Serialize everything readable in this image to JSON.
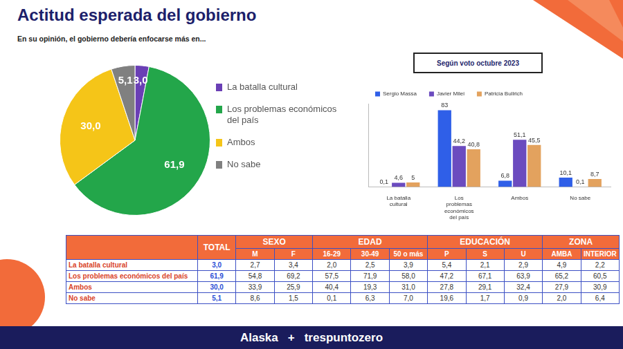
{
  "title": "Actitud esperada del gobierno",
  "subtitle": "En su opinión, el gobierno debería enfocarse más en...",
  "chart_data": [
    {
      "type": "pie",
      "categories": [
        "La batalla cultural",
        "Los problemas económicos del país",
        "Ambos",
        "No sabe"
      ],
      "values": [
        3.0,
        61.9,
        30.0,
        5.1
      ],
      "value_labels": [
        "3,0",
        "61,9",
        "30,0",
        "5,1"
      ],
      "colors": [
        "#6a3fb5",
        "#23a64a",
        "#f5c518",
        "#808080"
      ],
      "data_labels": true,
      "legend": "right"
    },
    {
      "type": "bar",
      "title": "Según voto octubre 2023",
      "categories": [
        "La batalla cultural",
        "Los problemas económicos del país",
        "Ambos",
        "No sabe"
      ],
      "series": [
        {
          "name": "Sergio Massa",
          "color": "#2f5fe8",
          "values": [
            0.1,
            83,
            6.8,
            10.1
          ],
          "value_labels": [
            "0,1",
            "83",
            "6,8",
            "10,1"
          ]
        },
        {
          "name": "Javier Milei",
          "color": "#6b4bbf",
          "values": [
            4.6,
            44.2,
            51.1,
            0.1
          ],
          "value_labels": [
            "4,6",
            "44,2",
            "51,1",
            "0,1"
          ]
        },
        {
          "name": "Patricia Bullrich",
          "color": "#e3a25e",
          "values": [
            5,
            40.8,
            45.5,
            8.7
          ],
          "value_labels": [
            "5",
            "40,8",
            "45,5",
            "8,7"
          ]
        }
      ],
      "ylim": [
        0,
        90
      ],
      "data_labels": true,
      "tick_labels": "x",
      "grid": false,
      "legend": "top"
    }
  ],
  "table": {
    "groups": [
      {
        "label": "TOTAL"
      },
      {
        "label": "SEXO",
        "columns": [
          "M",
          "F"
        ]
      },
      {
        "label": "EDAD",
        "columns": [
          "16-29",
          "30-49",
          "50 o más"
        ]
      },
      {
        "label": "EDUCACIÓN",
        "columns": [
          "P",
          "S",
          "U"
        ]
      },
      {
        "label": "ZONA",
        "columns": [
          "AMBA",
          "INTERIOR"
        ]
      }
    ],
    "rows": [
      {
        "label": "La batalla cultural",
        "values": [
          "3,0",
          "2,7",
          "3,4",
          "2,0",
          "2,5",
          "3,9",
          "5,4",
          "2,1",
          "2,9",
          "4,9",
          "2,2"
        ]
      },
      {
        "label": "Los problemas económicos del país",
        "values": [
          "61,9",
          "54,8",
          "69,2",
          "57,5",
          "71,9",
          "58,0",
          "47,2",
          "67,1",
          "63,9",
          "65,2",
          "60,5"
        ]
      },
      {
        "label": "Ambos",
        "values": [
          "30,0",
          "33,9",
          "25,9",
          "40,4",
          "19,3",
          "31,0",
          "27,8",
          "29,1",
          "32,4",
          "27,9",
          "30,9"
        ]
      },
      {
        "label": "No sabe",
        "values": [
          "5,1",
          "8,6",
          "1,5",
          "0,1",
          "6,3",
          "7,0",
          "19,6",
          "1,7",
          "0,9",
          "2,0",
          "6,4"
        ]
      }
    ]
  },
  "footer": [
    "Alaska",
    "+",
    "trespuntozero"
  ]
}
